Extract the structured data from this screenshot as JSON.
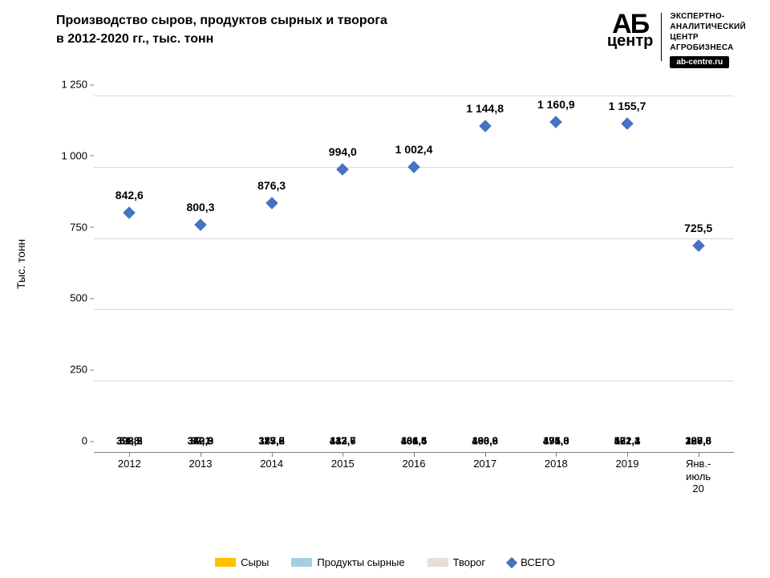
{
  "title_line1": "Производство сыров, продуктов сырных и творога",
  "title_line2": "в 2012-2020 гг., тыс. тонн",
  "title_fontsize": 16,
  "logo": {
    "ab_top": "АБ",
    "ab_bottom": "центр",
    "right_lines": "ЭКСПЕРТНО-\nАНАЛИТИЧЕСКИЙ\nЦЕНТР\nАГРОБИЗНЕСА",
    "url": "ab-centre.ru"
  },
  "chart": {
    "type": "stacked-bar-with-markers",
    "y_axis_label": "Тыс. тонн",
    "ylim": [
      0,
      1250
    ],
    "ytick_step": 250,
    "y_tick_labels": [
      "0",
      "250",
      "500",
      "750",
      "1 000",
      "1 250"
    ],
    "label_fontsize": 14,
    "value_label_fontsize": 13,
    "total_label_fontsize": 14,
    "background_color": "#ffffff",
    "grid_color": "#d9d9d9",
    "axis_color": "#7f7f7f",
    "bar_width_ratio": 0.62,
    "categories": [
      "2012",
      "2013",
      "2014",
      "2015",
      "2016",
      "2017",
      "2018",
      "2019",
      "Янв.-июль\n20"
    ],
    "series": [
      {
        "name": "Сыры",
        "color": "#ffc000",
        "values": [
          392.5,
          340.9,
          377.5,
          447.7,
          461.4,
          460.9,
          474.0,
          521.3,
          327.5
        ]
      },
      {
        "name": "Продукты сырные",
        "color": "#a6cee3",
        "values": [
          51.8,
          87.1,
          115.6,
          132.6,
          136.5,
          193.3,
          191.3,
          172.4,
          109.3
        ]
      },
      {
        "name": "Творог",
        "color": "#e6e0d4",
        "values": [
          398.2,
          372.3,
          383.2,
          413.7,
          404.5,
          490.6,
          495.6,
          462.1,
          288.6
        ]
      }
    ],
    "totals": {
      "name": "ВСЕГО",
      "marker_color": "#4472c4",
      "marker_shape": "diamond",
      "values": [
        842.6,
        800.3,
        876.3,
        994.0,
        1002.4,
        1144.8,
        1160.9,
        1155.7,
        725.5
      ],
      "labels": [
        "842,6",
        "800,3",
        "876,3",
        "994,0",
        "1 002,4",
        "1 144,8",
        "1 160,9",
        "1 155,7",
        "725,5"
      ]
    },
    "value_labels": [
      [
        "392,5",
        "51,8",
        "398,2"
      ],
      [
        "340,9",
        "87,1",
        "372,3"
      ],
      [
        "377,5",
        "115,6",
        "383,2"
      ],
      [
        "447,7",
        "132,6",
        "413,7"
      ],
      [
        "461,4",
        "136,5",
        "404,5"
      ],
      [
        "460,9",
        "193,3",
        "490,6"
      ],
      [
        "474,0",
        "191,3",
        "495,6"
      ],
      [
        "521,3",
        "172,4",
        "462,1"
      ],
      [
        "327,5",
        "109,3",
        "288,6"
      ]
    ]
  },
  "legend": {
    "items": [
      "Сыры",
      "Продукты сырные",
      "Творог",
      "ВСЕГО"
    ]
  }
}
